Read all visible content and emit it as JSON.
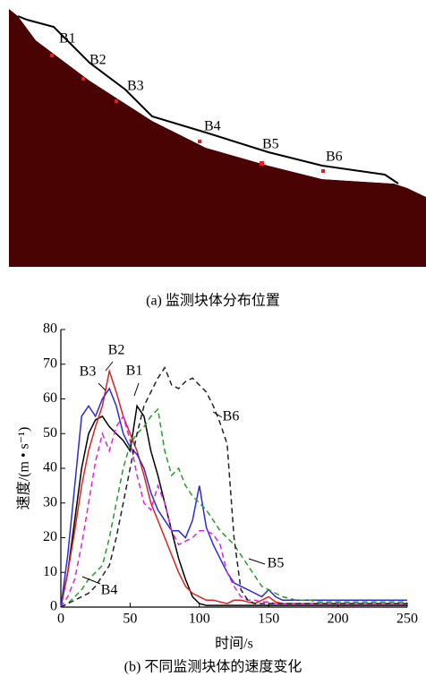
{
  "figure": {
    "caption_a": "(a)  监测块体分布位置",
    "caption_b": "(b)  不同监测块体的速度变化",
    "blocks": [
      "B1",
      "B2",
      "B3",
      "B4",
      "B5",
      "B6"
    ]
  },
  "chart_data": {
    "type": "line",
    "xlabel": "时间/s",
    "ylabel": "速度/(m • s⁻¹)",
    "xlim": [
      0,
      250
    ],
    "xticks": [
      0,
      50,
      100,
      150,
      200,
      250
    ],
    "ylim": [
      0,
      80
    ],
    "yticks": [
      0,
      10,
      20,
      30,
      40,
      50,
      60,
      70,
      80
    ],
    "x": [
      0,
      5,
      10,
      15,
      20,
      25,
      30,
      35,
      40,
      45,
      50,
      55,
      60,
      65,
      70,
      75,
      80,
      85,
      90,
      95,
      100,
      105,
      110,
      115,
      120,
      125,
      130,
      135,
      140,
      145,
      150,
      155,
      160,
      165,
      170,
      175,
      180,
      185,
      190,
      195,
      200,
      205,
      210,
      215,
      220,
      225,
      230,
      235,
      240,
      245,
      250
    ],
    "series": [
      {
        "name": "B1",
        "color": "#000000",
        "dash": false,
        "values": [
          0,
          10,
          25,
          40,
          50,
          54,
          55,
          52,
          50,
          48,
          45,
          58,
          55,
          45,
          38,
          30,
          22,
          14,
          8,
          3,
          1,
          0.5,
          0.5,
          0.5,
          0.5,
          0.5,
          0.5,
          0.5,
          0.5,
          0.5,
          0.5,
          0.5,
          0.5,
          0.5,
          0.5,
          0.5,
          0.5,
          0.5,
          0.5,
          0.5,
          0.5,
          0.5,
          0.5,
          0.5,
          0.5,
          0.5,
          0.5,
          0.5,
          0.5,
          0.5,
          0.5
        ]
      },
      {
        "name": "B2",
        "color": "#e0201c",
        "dash": false,
        "values": [
          0,
          10,
          22,
          35,
          45,
          52,
          58,
          68,
          62,
          55,
          50,
          45,
          38,
          30,
          25,
          20,
          15,
          10,
          6,
          4,
          3,
          2,
          2,
          1.5,
          1,
          2,
          2,
          1.5,
          1,
          2,
          3,
          1.5,
          1,
          1,
          1,
          1,
          1,
          1,
          1,
          1,
          1,
          1,
          1,
          1,
          1,
          1,
          1,
          1,
          1,
          1,
          1
        ]
      },
      {
        "name": "B3",
        "color": "#2a2ae0",
        "dash": false,
        "values": [
          0,
          15,
          35,
          55,
          58,
          55,
          60,
          63,
          58,
          50,
          46,
          44,
          40,
          33,
          28,
          25,
          22,
          22,
          20,
          25,
          35,
          23,
          18,
          14,
          10,
          7,
          6,
          5,
          4,
          3,
          5,
          3,
          2,
          2,
          2,
          2,
          2,
          2,
          2,
          2,
          2,
          2,
          2,
          2,
          2,
          2,
          2,
          2,
          2,
          2,
          2
        ]
      },
      {
        "name": "B4",
        "color": "#e020e0",
        "dash": true,
        "values": [
          0,
          3,
          8,
          18,
          30,
          42,
          50,
          45,
          52,
          55,
          48,
          38,
          30,
          28,
          35,
          30,
          22,
          18,
          19,
          20,
          22,
          22,
          21,
          18,
          10,
          6,
          3,
          2,
          2,
          1.5,
          1.5,
          1,
          1,
          1,
          1,
          1,
          1,
          1,
          1,
          1,
          1,
          1,
          1,
          1,
          1,
          1,
          1,
          1,
          1,
          1,
          1
        ]
      },
      {
        "name": "B5",
        "color": "#2a9a2a",
        "dash": true,
        "values": [
          0,
          1,
          3,
          5,
          8,
          10,
          12,
          20,
          30,
          40,
          47,
          50,
          52,
          55,
          57,
          45,
          38,
          40,
          35,
          32,
          30,
          28,
          25,
          22,
          20,
          18,
          15,
          12,
          9,
          6,
          5,
          4,
          3,
          2.5,
          2,
          2,
          2,
          1.5,
          1.5,
          1.5,
          1.5,
          1.5,
          1.5,
          1.5,
          1.5,
          1.5,
          1.5,
          1.5,
          1.5,
          1.5,
          1.5
        ]
      },
      {
        "name": "B6",
        "color": "#222222",
        "dash": true,
        "values": [
          0,
          1,
          2,
          3,
          4,
          6,
          9,
          12,
          20,
          30,
          40,
          50,
          58,
          62,
          66,
          69,
          64,
          63,
          65,
          66,
          64,
          62,
          58,
          53,
          47,
          20,
          5,
          2,
          1,
          1,
          1,
          1,
          1,
          1,
          1,
          1,
          1,
          1,
          1,
          1,
          1,
          1,
          1,
          1,
          1,
          1,
          1,
          1,
          1,
          1,
          1
        ]
      }
    ]
  }
}
